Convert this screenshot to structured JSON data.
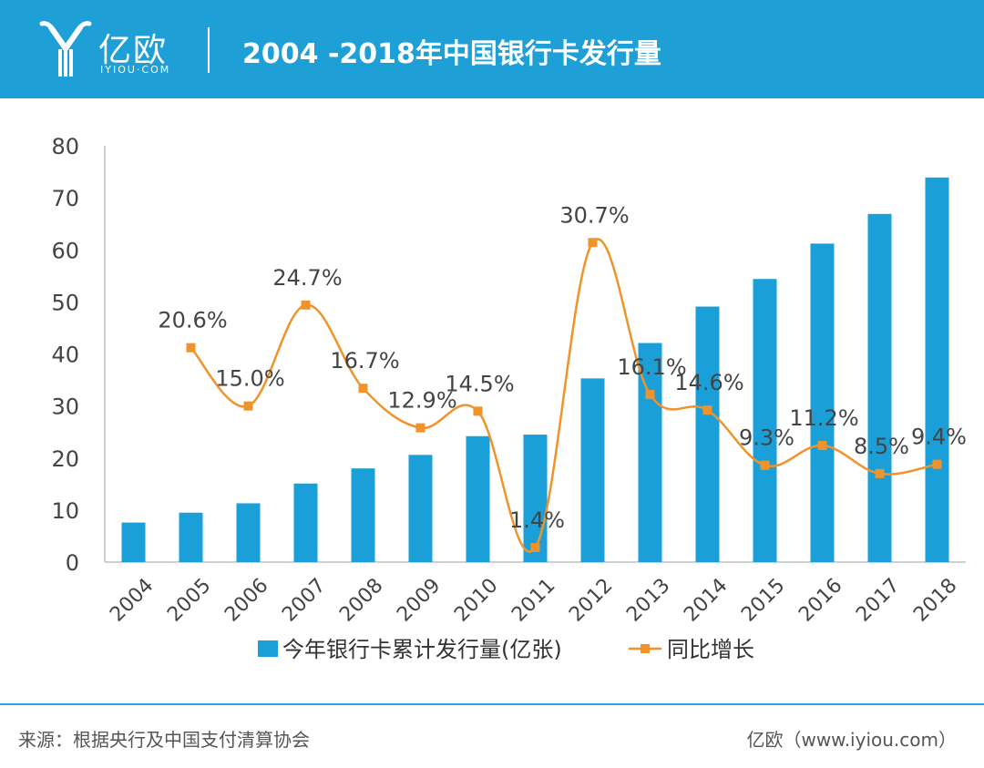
{
  "header": {
    "bg_color": "#1e9fd6",
    "logo_text": "亿欧",
    "logo_sub": "IYIOU·COM",
    "title": "2004 -2018年中国银行卡发行量"
  },
  "chart_data": {
    "type": "bar",
    "categories": [
      "2004",
      "2005",
      "2006",
      "2007",
      "2008",
      "2009",
      "2010",
      "2011",
      "2012",
      "2013",
      "2014",
      "2015",
      "2016",
      "2017",
      "2018"
    ],
    "series": [
      {
        "name": "今年银行卡累计发行量(亿张)",
        "type": "bar",
        "color": "#1a9fd8",
        "values": [
          7.6,
          9.5,
          11.3,
          15.1,
          18.0,
          20.6,
          24.2,
          24.5,
          35.3,
          42.1,
          49.1,
          54.4,
          61.2,
          66.9,
          73.9
        ]
      },
      {
        "name": "同比增长",
        "type": "line",
        "color": "#f0932a",
        "axis_value_scale": 2,
        "values": [
          null,
          20.6,
          15.0,
          24.7,
          16.7,
          12.9,
          14.5,
          1.4,
          30.7,
          16.1,
          14.6,
          9.3,
          11.2,
          8.5,
          9.4
        ],
        "labels": [
          null,
          "20.6%",
          "15.0%",
          "24.7%",
          "16.7%",
          "12.9%",
          "14.5%",
          "1.4%",
          "30.7%",
          "16.1%",
          "14.6%",
          "9.3%",
          "11.2%",
          "8.5%",
          "9.4%"
        ]
      }
    ],
    "ylim": [
      0,
      80
    ],
    "yticks": [
      "0",
      "10",
      "20",
      "30",
      "40",
      "50",
      "60",
      "70",
      "80"
    ],
    "title": "",
    "xlabel": "",
    "ylabel": "",
    "legend_position": "bottom",
    "grid": false
  },
  "footer": {
    "source": "来源：根据央行及中国支付清算协会",
    "brand": "亿欧（www.iyiou.com）"
  }
}
